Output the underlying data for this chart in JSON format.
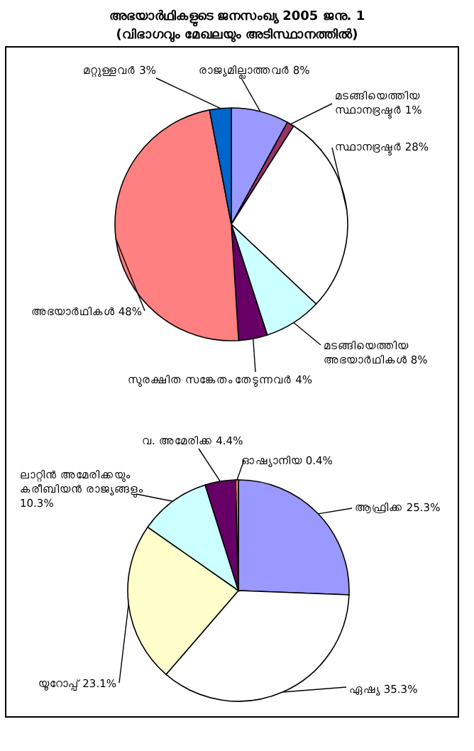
{
  "chart_data": [
    {
      "type": "pie",
      "title": "അഭയാർഥികളുടെ ജനസംഖ്യ 2005 ജനു. 1",
      "subtitle": "(വിഭാഗവും മേഖലയും അടിസ്ഥാനത്തിൽ)",
      "categories": [
        "രാജ്യമില്ലാത്തവർ",
        "മടങ്ങിയെത്തിയ സ്ഥാനഭ്രഷ്ടർ",
        "സ്ഥാനഭ്രഷ്ടർ",
        "മടങ്ങിയെത്തിയ അഭയാർഥികൾ",
        "സുരക്ഷിത സങ്കേതം തേടുന്നവർ",
        "അഭയാർഥികൾ",
        "മറ്റുള്ളവർ"
      ],
      "values": [
        8,
        1,
        28,
        8,
        4,
        48,
        3
      ],
      "value_labels": [
        "8%",
        "1%",
        "28%",
        "8%",
        "4%",
        "48%",
        "3%"
      ],
      "colors": [
        "#9999ff",
        "#993366",
        "#ffffff",
        "#ccffff",
        "#660066",
        "#ff8080",
        "#0066cc"
      ]
    },
    {
      "type": "pie",
      "categories": [
        "ആഫ്രിക്ക",
        "ഏഷ്യ",
        "യൂറോപ്പ്",
        "ലാറ്റിൻ അമേരിക്കയും കരീബിയൻ രാജ്യങ്ങളും",
        "വ. അമേരിക്ക",
        "ഓഷ്യാനിയ"
      ],
      "values": [
        25.3,
        35.3,
        23.1,
        10.3,
        4.4,
        0.4
      ],
      "value_labels": [
        "25.3%",
        "35.3%",
        "23.1%",
        "10.3%",
        "4.4%",
        "0.4%"
      ],
      "colors": [
        "#9999ff",
        "#ffffff",
        "#ffffcc",
        "#ccffff",
        "#660066",
        "#ff8080"
      ]
    }
  ]
}
